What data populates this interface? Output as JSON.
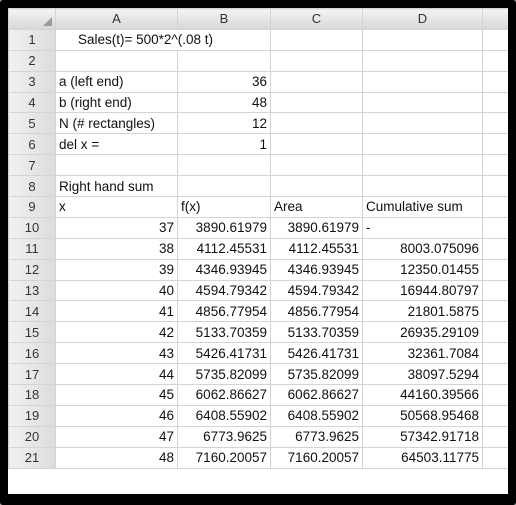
{
  "sheet": {
    "column_headers": [
      "A",
      "B",
      "C",
      "D"
    ],
    "rows": [
      {
        "num": "1",
        "a": "Sales(t)= 500*2^(.08 t)",
        "b": "",
        "c": "",
        "d": ""
      },
      {
        "num": "2",
        "a": "",
        "b": "",
        "c": "",
        "d": ""
      },
      {
        "num": "3",
        "a": "a (left end)",
        "b": "36",
        "c": "",
        "d": ""
      },
      {
        "num": "4",
        "a": "b (right end)",
        "b": "48",
        "c": "",
        "d": ""
      },
      {
        "num": "5",
        "a": "N (# rectangles)",
        "b": "12",
        "c": "",
        "d": ""
      },
      {
        "num": "6",
        "a": "del x =",
        "b": "1",
        "c": "",
        "d": ""
      },
      {
        "num": "7",
        "a": "",
        "b": "",
        "c": "",
        "d": ""
      },
      {
        "num": "8",
        "a": "Right hand sum",
        "b": "",
        "c": "",
        "d": ""
      },
      {
        "num": "9",
        "a": "x",
        "b": "f(x)",
        "c": "Area",
        "d": "Cumulative sum"
      },
      {
        "num": "10",
        "a": "37",
        "b": "3890.61979",
        "c": "3890.61979",
        "d": "-"
      },
      {
        "num": "11",
        "a": "38",
        "b": "4112.45531",
        "c": "4112.45531",
        "d": "8003.075096"
      },
      {
        "num": "12",
        "a": "39",
        "b": "4346.93945",
        "c": "4346.93945",
        "d": "12350.01455"
      },
      {
        "num": "13",
        "a": "40",
        "b": "4594.79342",
        "c": "4594.79342",
        "d": "16944.80797"
      },
      {
        "num": "14",
        "a": "41",
        "b": "4856.77954",
        "c": "4856.77954",
        "d": "21801.5875"
      },
      {
        "num": "15",
        "a": "42",
        "b": "5133.70359",
        "c": "5133.70359",
        "d": "26935.29109"
      },
      {
        "num": "16",
        "a": "43",
        "b": "5426.41731",
        "c": "5426.41731",
        "d": "32361.7084"
      },
      {
        "num": "17",
        "a": "44",
        "b": "5735.82099",
        "c": "5735.82099",
        "d": "38097.5294"
      },
      {
        "num": "18",
        "a": "45",
        "b": "6062.86627",
        "c": "6062.86627",
        "d": "44160.39566"
      },
      {
        "num": "19",
        "a": "46",
        "b": "6408.55902",
        "c": "6408.55902",
        "d": "50568.95468"
      },
      {
        "num": "20",
        "a": "47",
        "b": "6773.9625",
        "c": "6773.9625",
        "d": "57342.91718"
      },
      {
        "num": "21",
        "a": "48",
        "b": "7160.20057",
        "c": "7160.20057",
        "d": "64503.11775"
      }
    ]
  }
}
